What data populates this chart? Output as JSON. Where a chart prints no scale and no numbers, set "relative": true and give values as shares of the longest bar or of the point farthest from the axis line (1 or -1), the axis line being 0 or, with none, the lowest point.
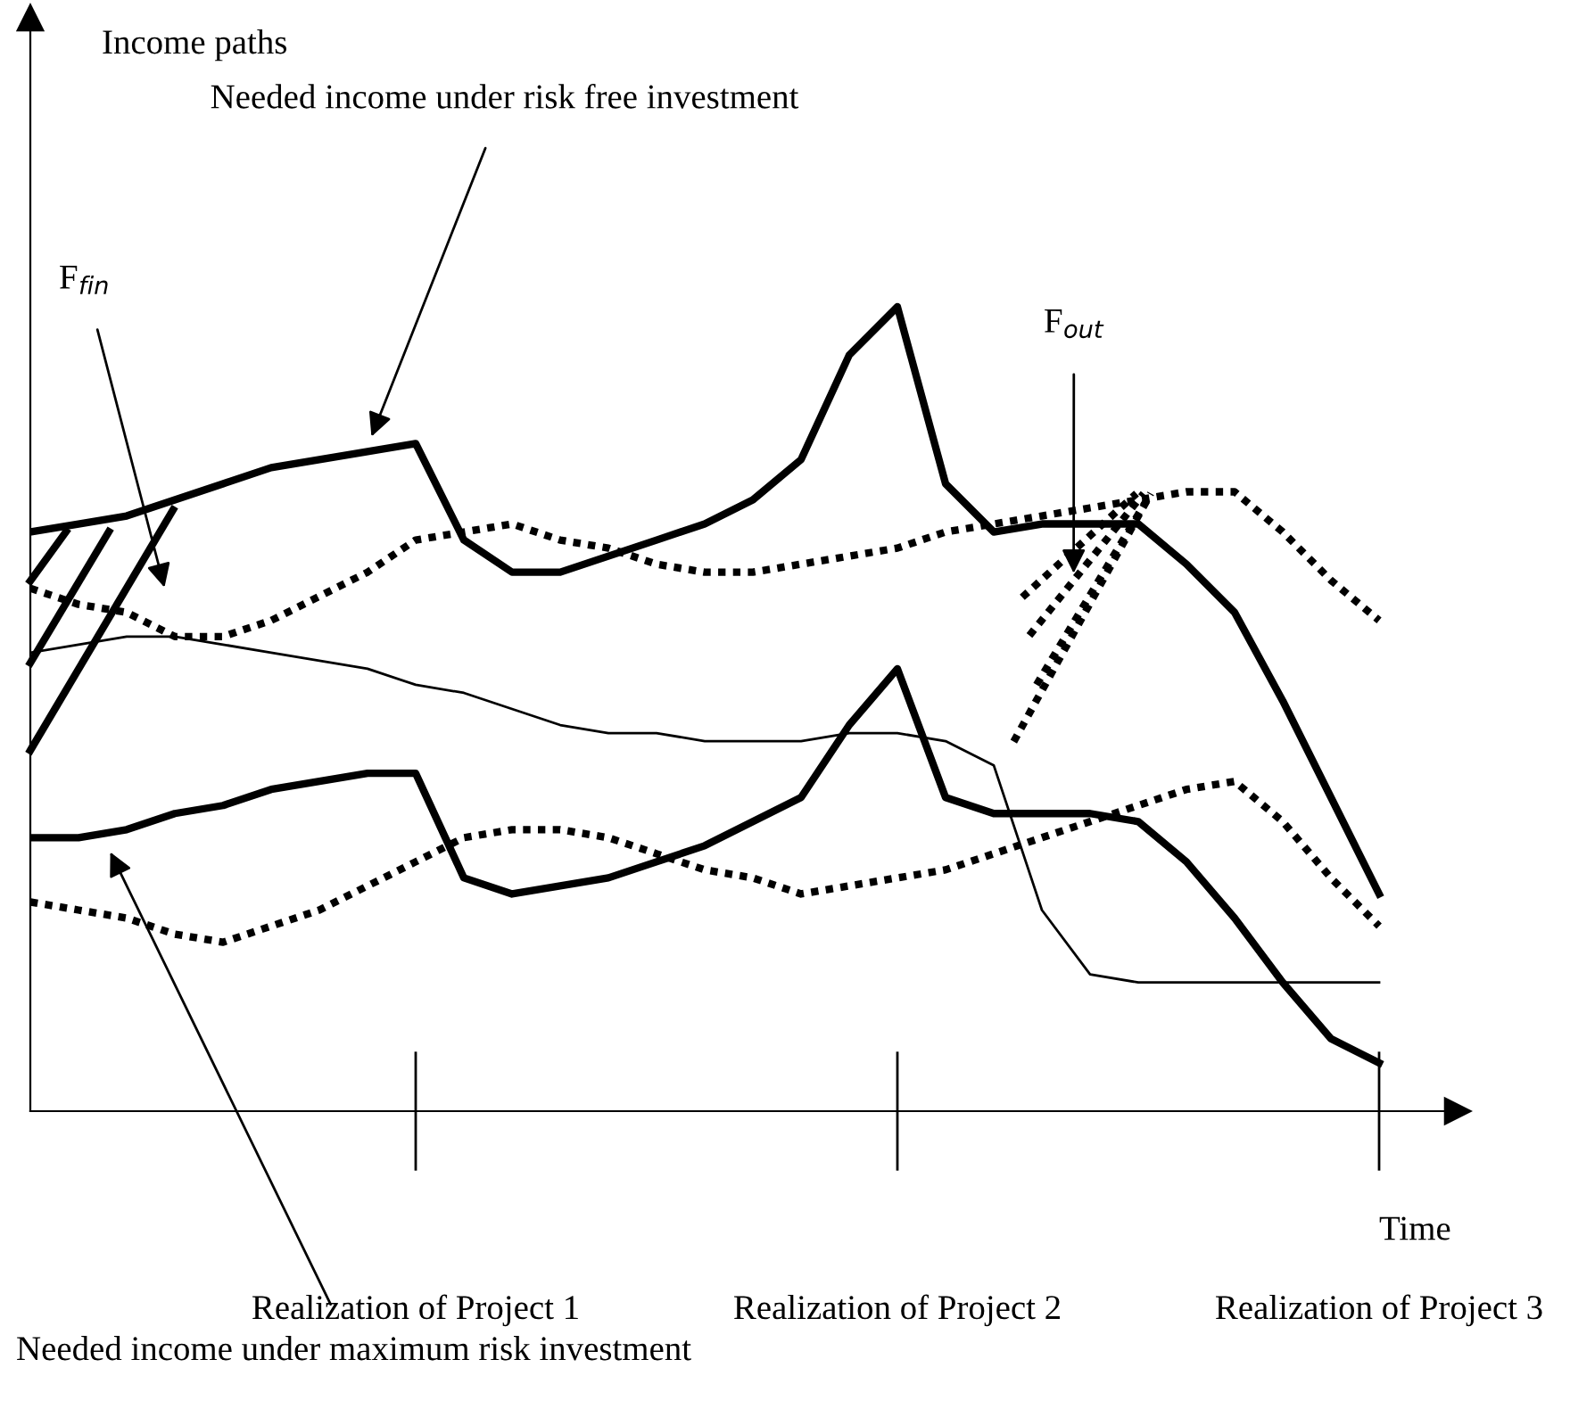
{
  "chart_data": {
    "type": "line",
    "relative": true,
    "xlabel": "Time",
    "categories": [
      null,
      null,
      null,
      null,
      null,
      null,
      null,
      null,
      "Realization of Project 1",
      null,
      null,
      null,
      null,
      null,
      null,
      null,
      null,
      null,
      "Realization of Project 2",
      null,
      null,
      null,
      null,
      null,
      null,
      null,
      null,
      null,
      "Realization of Project 3"
    ],
    "series": [
      {
        "color": "#000000",
        "line_style": "solid",
        "values": [
          0.72,
          0.73,
          0.74,
          0.76,
          0.78,
          0.8,
          0.81,
          0.82,
          0.83,
          0.71,
          0.67,
          0.67,
          0.69,
          0.71,
          0.73,
          0.76,
          0.81,
          0.94,
          1.0,
          0.78,
          0.72,
          0.73,
          0.73,
          0.73,
          0.68,
          0.62,
          0.51,
          0.39,
          0.27
        ]
      },
      {
        "color": "#000000",
        "line_style": "dotted",
        "values": [
          0.65,
          0.63,
          0.62,
          0.59,
          0.59,
          0.61,
          0.64,
          0.67,
          0.71,
          0.72,
          0.73,
          0.71,
          0.7,
          0.68,
          0.67,
          0.67,
          0.68,
          0.69,
          0.7,
          0.72,
          0.73,
          0.74,
          0.75,
          0.76,
          0.77,
          0.77,
          0.72,
          0.66,
          0.61
        ]
      },
      {
        "color": "#000000",
        "line_style": "solid",
        "values": [
          0.57,
          0.58,
          0.59,
          0.59,
          0.58,
          0.57,
          0.56,
          0.55,
          0.53,
          0.52,
          0.5,
          0.48,
          0.47,
          0.47,
          0.46,
          0.46,
          0.46,
          0.47,
          0.47,
          0.46,
          0.43,
          0.25,
          0.17,
          0.16,
          0.16,
          0.16,
          0.16,
          0.16,
          0.16
        ]
      },
      {
        "color": "#000000",
        "line_style": "solid",
        "values": [
          0.34,
          0.34,
          0.35,
          0.37,
          0.38,
          0.4,
          0.41,
          0.42,
          0.42,
          0.29,
          0.27,
          0.28,
          0.29,
          0.31,
          0.33,
          0.36,
          0.39,
          0.48,
          0.55,
          0.39,
          0.37,
          0.37,
          0.37,
          0.36,
          0.31,
          0.24,
          0.16,
          0.09,
          0.06
        ]
      },
      {
        "color": "#000000",
        "line_style": "dotted",
        "values": [
          0.26,
          0.25,
          0.24,
          0.22,
          0.21,
          0.23,
          0.25,
          0.28,
          0.31,
          0.34,
          0.35,
          0.35,
          0.34,
          0.32,
          0.3,
          0.29,
          0.27,
          0.28,
          0.29,
          0.3,
          0.32,
          0.34,
          0.36,
          0.38,
          0.4,
          0.41,
          0.36,
          0.29,
          0.23
        ]
      }
    ],
    "annotations": [
      "Income paths",
      "Needed income under risk free investment",
      "F$_{fin}$",
      "F$_{out}$",
      "Needed income under maximum risk investment"
    ]
  }
}
